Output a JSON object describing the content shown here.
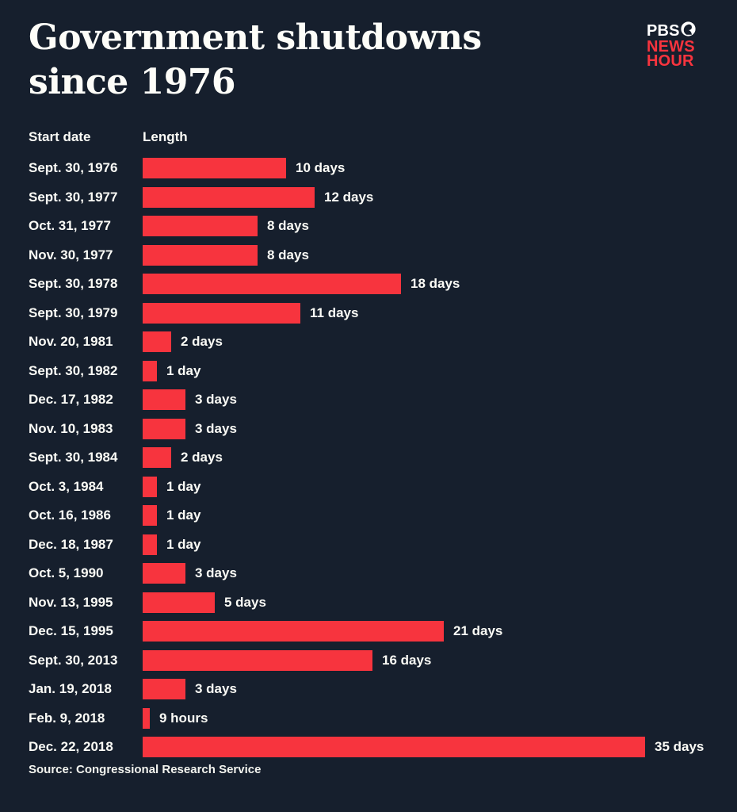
{
  "header": {
    "title_line1": "Government shutdowns",
    "title_line2": "since 1976",
    "logo": {
      "pbs_label": "PBS",
      "news_label": "NEWS",
      "hour_label": "HOUR",
      "icon": "pbs-face-icon",
      "pbs_color": "#ffffff",
      "red_color": "#f7343e"
    }
  },
  "columns": {
    "start_date_label": "Start date",
    "length_label": "Length"
  },
  "chart_data": {
    "type": "bar",
    "orientation": "horizontal",
    "title": "Government shutdowns since 1976",
    "xlabel": "Length",
    "ylabel": "Start date",
    "unit": "days",
    "xlim": [
      0,
      35
    ],
    "grid": false,
    "bar_color": "#f7343e",
    "background_color": "#161f2d",
    "categories": [
      "Sept. 30, 1976",
      "Sept. 30, 1977",
      "Oct. 31, 1977",
      "Nov. 30, 1977",
      "Sept. 30, 1978",
      "Sept. 30, 1979",
      "Nov. 20, 1981",
      "Sept. 30, 1982",
      "Dec. 17, 1982",
      "Nov. 10, 1983",
      "Sept. 30, 1984",
      "Oct. 3, 1984",
      "Oct. 16, 1986",
      "Dec. 18, 1987",
      "Oct. 5, 1990",
      "Nov. 13, 1995",
      "Dec. 15, 1995",
      "Sept. 30, 2013",
      "Jan. 19, 2018",
      "Feb. 9, 2018",
      "Dec. 22, 2018"
    ],
    "values": [
      10,
      12,
      8,
      8,
      18,
      11,
      2,
      1,
      3,
      3,
      2,
      1,
      1,
      1,
      3,
      5,
      21,
      16,
      3,
      0.375,
      35
    ],
    "value_labels": [
      "10 days",
      "12 days",
      "8 days",
      "8 days",
      "18 days",
      "11 days",
      "2 days",
      "1 day",
      "3 days",
      "3 days",
      "2 days",
      "1 day",
      "1 day",
      "1 day",
      "3 days",
      "5 days",
      "21 days",
      "16 days",
      "3 days",
      "9 hours",
      "35 days"
    ]
  },
  "footer": {
    "source": "Source: Congressional Research Service"
  }
}
